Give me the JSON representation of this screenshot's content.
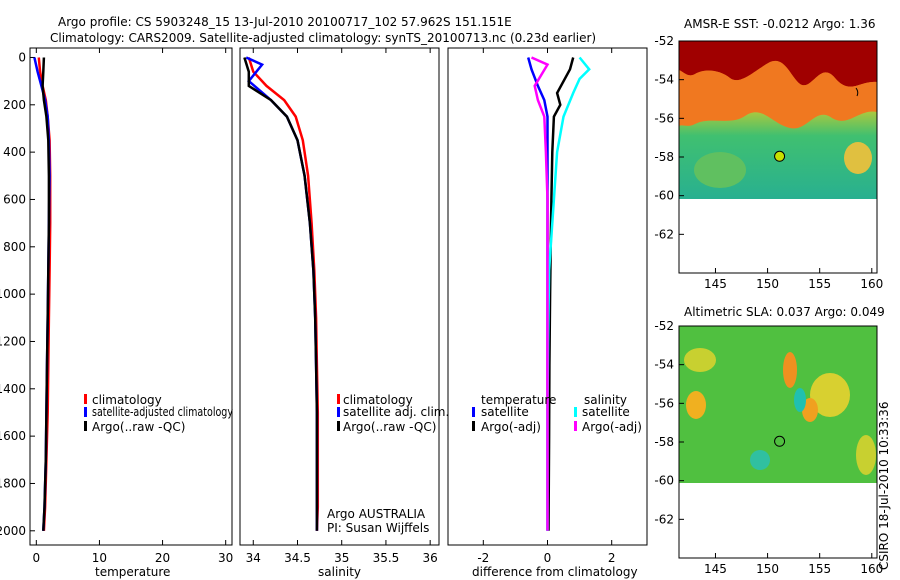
{
  "title": {
    "line1": "Argo profile: CS 5903248_15 13-Jul-2010 20100717_102 57.962S 151.151E",
    "line2": "Climatology: CARS2009. Satellite-adjusted climatology: synTS_20100713.nc (0.23d earlier)"
  },
  "colors": {
    "red": "#ff0000",
    "blue": "#0000ff",
    "black": "#000000",
    "cyan": "#00ffff",
    "magenta": "#ff00ff"
  },
  "chart_data": [
    {
      "type": "line",
      "name": "temperature",
      "xlabel": "temperature",
      "ylabel": "",
      "xlim": [
        -1,
        31
      ],
      "ylim": [
        2060,
        -40
      ],
      "y_reversed": true,
      "xticks": [
        "0",
        "10",
        "20",
        "30"
      ],
      "yticks": [
        "0",
        "200",
        "400",
        "600",
        "800",
        "1000",
        "1200",
        "1400",
        "1600",
        "1800",
        "2000"
      ],
      "series": [
        {
          "name": "climatology",
          "color": "red",
          "x": [
            0.4,
            0.6,
            1.0,
            1.5,
            1.8,
            2.1,
            2.2,
            2.2,
            2.1,
            2.0,
            1.9,
            1.8,
            1.6,
            1.4,
            1.2
          ],
          "y": [
            0,
            60,
            120,
            180,
            250,
            350,
            500,
            700,
            900,
            1100,
            1300,
            1500,
            1700,
            1900,
            2000
          ]
        },
        {
          "name": "satellite-adjusted climatology",
          "color": "blue",
          "x": [
            -0.3,
            0.2,
            0.8,
            1.4,
            1.8,
            2.0,
            2.1,
            2.0,
            1.9,
            1.8,
            1.7,
            1.6,
            1.5,
            1.3,
            1.1
          ],
          "y": [
            0,
            60,
            120,
            180,
            250,
            350,
            500,
            700,
            900,
            1100,
            1300,
            1500,
            1700,
            1900,
            2000
          ]
        },
        {
          "name": "Argo(..raw -QC)",
          "color": "black",
          "x": [
            1.2,
            1.1,
            1.0,
            1.2,
            1.6,
            1.9,
            2.0,
            2.0,
            1.9,
            1.8,
            1.7,
            1.6,
            1.5,
            1.3,
            1.1
          ],
          "y": [
            0,
            60,
            120,
            180,
            250,
            350,
            500,
            700,
            900,
            1100,
            1300,
            1500,
            1700,
            1900,
            2000
          ]
        }
      ],
      "legend": [
        "climatology",
        "satellite-adjusted climatology",
        "Argo(..raw -QC)"
      ]
    },
    {
      "type": "line",
      "name": "salinity",
      "xlabel": "salinity",
      "xlim": [
        33.85,
        36.1
      ],
      "ylim": [
        2060,
        -40
      ],
      "y_reversed": true,
      "xticks": [
        "34",
        "34.5",
        "35",
        "35.5",
        "36"
      ],
      "series": [
        {
          "name": "climatology",
          "color": "red",
          "x": [
            33.95,
            34.0,
            34.15,
            34.35,
            34.48,
            34.56,
            34.62,
            34.66,
            34.69,
            34.71,
            34.72,
            34.73,
            34.73,
            34.73,
            34.72
          ],
          "y": [
            0,
            60,
            120,
            180,
            250,
            350,
            500,
            700,
            900,
            1100,
            1300,
            1500,
            1700,
            1900,
            2000
          ]
        },
        {
          "name": "satellite adj. clim.",
          "color": "blue",
          "x": [
            33.92,
            34.1,
            33.95,
            34.2,
            34.38,
            34.5,
            34.58,
            34.64,
            34.68,
            34.7,
            34.71,
            34.72,
            34.72,
            34.72,
            34.72
          ],
          "y": [
            0,
            30,
            100,
            180,
            250,
            350,
            500,
            700,
            900,
            1100,
            1300,
            1500,
            1700,
            1900,
            2000
          ]
        },
        {
          "name": "Argo(..raw -QC)",
          "color": "black",
          "x": [
            33.9,
            33.95,
            33.95,
            34.2,
            34.38,
            34.5,
            34.58,
            34.64,
            34.68,
            34.7,
            34.71,
            34.72,
            34.72,
            34.72,
            34.72
          ],
          "y": [
            0,
            60,
            120,
            180,
            250,
            350,
            500,
            700,
            900,
            1100,
            1300,
            1500,
            1700,
            1900,
            2000
          ]
        }
      ],
      "legend": [
        "climatology",
        "satellite adj. clim.",
        "Argo(..raw -QC)"
      ],
      "annotation": [
        "Argo AUSTRALIA",
        "PI: Susan Wijffels"
      ]
    },
    {
      "type": "line",
      "name": "difference",
      "xlabel": "difference from climatology",
      "xlim": [
        -3.1,
        3.1
      ],
      "ylim": [
        2060,
        -40
      ],
      "y_reversed": true,
      "xticks": [
        "-2",
        "0",
        "2"
      ],
      "series": [
        {
          "name": "temperature satellite",
          "color": "blue",
          "x": [
            -0.6,
            -0.5,
            -0.3,
            -0.1,
            0.0,
            0.0,
            0.0,
            0.0,
            0.0,
            0.0,
            0.0,
            0.0,
            0.0
          ],
          "y": [
            0,
            50,
            120,
            180,
            250,
            400,
            600,
            800,
            1000,
            1300,
            1600,
            1800,
            2000
          ]
        },
        {
          "name": "temperature Argo(-adj)",
          "color": "black",
          "x": [
            0.8,
            0.7,
            0.3,
            0.4,
            0.2,
            0.15,
            0.12,
            0.1,
            0.08,
            0.06,
            0.05,
            0.04,
            0.03
          ],
          "y": [
            0,
            50,
            150,
            200,
            250,
            400,
            600,
            800,
            1000,
            1300,
            1600,
            1800,
            2000
          ]
        },
        {
          "name": "salinity satellite",
          "color": "cyan",
          "x": [
            1.0,
            1.3,
            1.0,
            0.8,
            0.5,
            0.3,
            0.2,
            0.1,
            0.05,
            0.02,
            0.0,
            0.0,
            0.0
          ],
          "y": [
            0,
            50,
            90,
            150,
            250,
            400,
            600,
            800,
            900,
            1200,
            1500,
            1800,
            2000
          ]
        },
        {
          "name": "salinity Argo(-adj)",
          "color": "magenta",
          "x": [
            -0.5,
            0.0,
            -0.4,
            -0.3,
            -0.1,
            -0.05,
            0.0,
            0.0,
            0.0,
            0.0,
            0.0,
            0.0,
            0.0
          ],
          "y": [
            0,
            30,
            120,
            180,
            250,
            400,
            600,
            800,
            1000,
            1300,
            1600,
            1800,
            2000
          ]
        }
      ],
      "legend_headers": [
        "temperature",
        "salinity"
      ],
      "legend": [
        "satellite",
        "Argo(-adj)",
        "satellite",
        "Argo(-adj)"
      ]
    },
    {
      "type": "heatmap",
      "name": "sst-map",
      "title": "AMSR-E SST: -0.0212 Argo: 1.36",
      "xlim": [
        141.5,
        160.5
      ],
      "ylim": [
        -64,
        -52
      ],
      "xticks": [
        "145",
        "150",
        "155",
        "160"
      ],
      "yticks": [
        "-52",
        "-54",
        "-56",
        "-58",
        "-60",
        "-62"
      ],
      "marker": {
        "lon": 151.151,
        "lat": -57.962
      }
    },
    {
      "type": "heatmap",
      "name": "sla-map",
      "title": "Altimetric SLA: 0.037 Argo: 0.049",
      "xlim": [
        141.5,
        160.5
      ],
      "ylim": [
        -64,
        -52
      ],
      "xticks": [
        "145",
        "150",
        "155",
        "160"
      ],
      "yticks": [
        "-52",
        "-54",
        "-56",
        "-58",
        "-60",
        "-62"
      ],
      "marker": {
        "lon": 151.151,
        "lat": -57.962
      }
    }
  ],
  "credit": "CSIRO 18-Jul-2010 10:33:36"
}
